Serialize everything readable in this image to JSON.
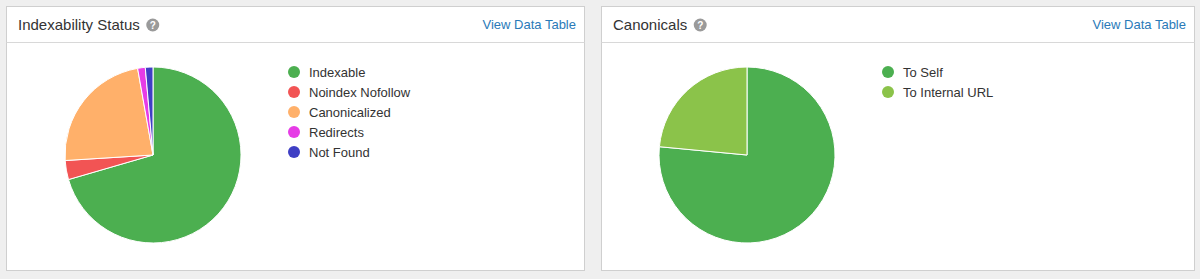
{
  "chart_data": [
    {
      "type": "pie",
      "title": "Indexability Status",
      "annotations": [
        "?",
        "View Data Table"
      ],
      "categories": [
        "Indexable",
        "Noindex Nofollow",
        "Canonicalized",
        "Redirects",
        "Not Found"
      ],
      "values": [
        70.5,
        3.5,
        23.2,
        1.4,
        1.4
      ],
      "colors": [
        "#4caf50",
        "#f25454",
        "#ffb06a",
        "#e63ce6",
        "#3f3fc4"
      ],
      "legend": "right"
    },
    {
      "type": "pie",
      "title": "Canonicals",
      "annotations": [
        "?",
        "View Data Table"
      ],
      "categories": [
        "To Self",
        "To Internal URL"
      ],
      "values": [
        76.5,
        23.5
      ],
      "colors": [
        "#4caf50",
        "#8bc34a"
      ],
      "legend": "right"
    }
  ]
}
